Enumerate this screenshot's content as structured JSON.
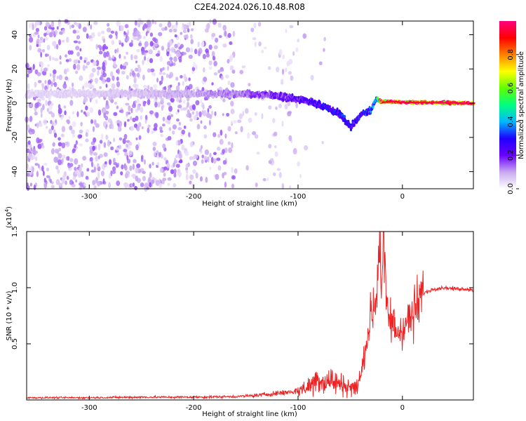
{
  "title": "C2E4.2024.026.10.48.R08",
  "chart_data": [
    {
      "type": "heatmap",
      "xlabel": "Height of straight line (km)",
      "ylabel": "Frequency (Hz)",
      "xlim": [
        -360,
        68
      ],
      "ylim": [
        -50,
        48
      ],
      "xticks": [
        -300,
        -200,
        -100,
        0
      ],
      "yticks": [
        -40,
        -20,
        0,
        20,
        40
      ],
      "colorbar": {
        "label": "Normalized spectral amplitude",
        "range": [
          0.0,
          1.0
        ],
        "ticks": [
          0.0,
          0.2,
          0.4,
          0.6,
          0.8
        ],
        "colors": [
          "#ffffff",
          "#c8a8f0",
          "#6a00ff",
          "#1f00ff",
          "#00b8ff",
          "#00ff80",
          "#60ff00",
          "#ffff00",
          "#ff8000",
          "#ff0000",
          "#ff0080"
        ]
      },
      "ridge": {
        "name": "",
        "x": [
          -360,
          -300,
          -250,
          -200,
          -160,
          -130,
          -110,
          -90,
          -75,
          -60,
          -50,
          -40,
          -30,
          -25,
          -20,
          -10,
          0,
          68
        ],
        "freq": [
          5.5,
          5.5,
          5.5,
          5.5,
          5.5,
          5.0,
          3.5,
          1.0,
          -2.0,
          -6.0,
          -14.0,
          -7.0,
          -4.0,
          3.0,
          0.5,
          1.0,
          0.5,
          0.0
        ],
        "amplitude": [
          0.05,
          0.06,
          0.08,
          0.1,
          0.14,
          0.18,
          0.22,
          0.25,
          0.28,
          0.3,
          0.3,
          0.28,
          0.35,
          0.4,
          0.9,
          0.95,
          0.95,
          0.97
        ]
      }
    },
    {
      "type": "line",
      "xlabel": "Height of straight line (km)",
      "ylabel": "SNR (10 * v/v)",
      "y_multiplier": "(x10^4)",
      "y_multiplier_base": "(x10",
      "y_multiplier_exp": "4",
      "y_multiplier_close": ")",
      "xlim": [
        -360,
        68
      ],
      "ylim": [
        0,
        1.5
      ],
      "xticks": [
        -300,
        -200,
        -100,
        0
      ],
      "yticks": [
        0.5,
        1.0,
        1.5
      ],
      "color": "#ee2222",
      "series": [
        {
          "x": [
            -360,
            -300,
            -250,
            -200,
            -160,
            -140,
            -120,
            -100,
            -90,
            -80,
            -75,
            -70,
            -60,
            -50,
            -45,
            -40,
            -35,
            -30,
            -25,
            -22,
            -20,
            -18,
            -15,
            -10,
            -5,
            0,
            10,
            20,
            30,
            40,
            50,
            60,
            68
          ],
          "y": [
            0.02,
            0.02,
            0.025,
            0.025,
            0.03,
            0.04,
            0.06,
            0.08,
            0.12,
            0.2,
            0.15,
            0.18,
            0.14,
            0.12,
            0.1,
            0.2,
            0.5,
            0.75,
            0.9,
            1.5,
            1.0,
            1.5,
            0.75,
            0.7,
            0.6,
            0.65,
            0.75,
            0.95,
            0.99,
            1.0,
            0.99,
            0.99,
            0.98
          ]
        }
      ]
    }
  ]
}
